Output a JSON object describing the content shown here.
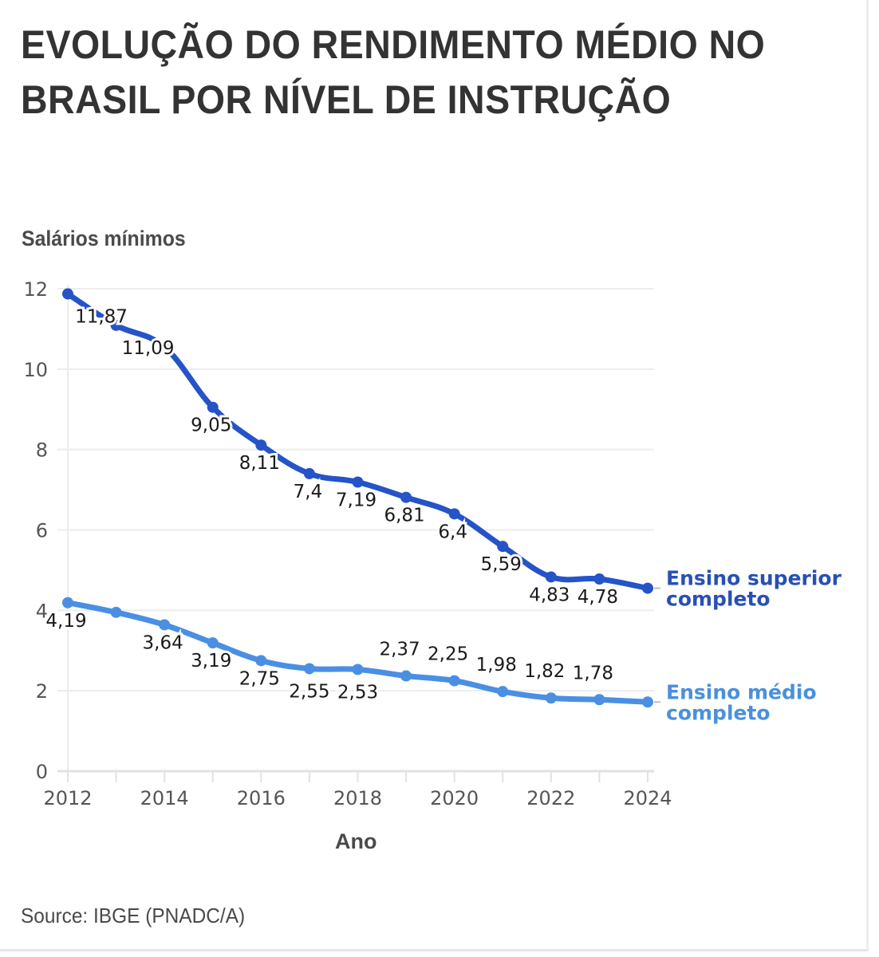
{
  "title": "EVOLUÇÃO DO RENDIMENTO MÉDIO NO BRASIL POR NÍVEL DE INSTRUÇÃO",
  "source": "Source: IBGE (PNADC/A)",
  "chart_data": {
    "type": "line",
    "title": "EVOLUÇÃO DO RENDIMENTO MÉDIO NO BRASIL POR NÍVEL DE INSTRUÇÃO",
    "ylabel": "Salários mínimos",
    "xlabel": "Ano",
    "x": [
      2012,
      2013,
      2014,
      2015,
      2016,
      2017,
      2018,
      2019,
      2020,
      2021,
      2022,
      2023,
      2024
    ],
    "xlim": [
      2012,
      2024
    ],
    "ylim": [
      0,
      12
    ],
    "yticks": [
      0,
      2,
      4,
      6,
      8,
      10,
      12
    ],
    "xticks": [
      2012,
      2014,
      2016,
      2018,
      2020,
      2022,
      2024
    ],
    "grid": "horizontal",
    "legend": "inline-right",
    "series": [
      {
        "name": "Ensino superior completo",
        "legend_lines": [
          "Ensino superior",
          "completo"
        ],
        "color": "#2553c8",
        "values": [
          11.87,
          11.09,
          10.55,
          9.05,
          8.11,
          7.4,
          7.19,
          6.81,
          6.4,
          5.59,
          4.83,
          4.78,
          4.55
        ],
        "labels": [
          "11,87",
          "11,09",
          null,
          "9,05",
          "8,11",
          "7,4",
          "7,19",
          "6,81",
          "6,4",
          "5,59",
          "4,83",
          "4,78",
          null
        ]
      },
      {
        "name": "Ensino médio completo",
        "legend_lines": [
          "Ensino médio",
          "completo"
        ],
        "color": "#4a8fe3",
        "values": [
          4.19,
          3.95,
          3.64,
          3.19,
          2.75,
          2.55,
          2.53,
          2.37,
          2.25,
          1.98,
          1.82,
          1.78,
          1.72
        ],
        "labels": [
          "4,19",
          null,
          "3,64",
          "3,19",
          "2,75",
          "2,55",
          "2,53",
          "2,37",
          "2,25",
          "1,98",
          "1,82",
          "1,78",
          null
        ]
      }
    ]
  }
}
